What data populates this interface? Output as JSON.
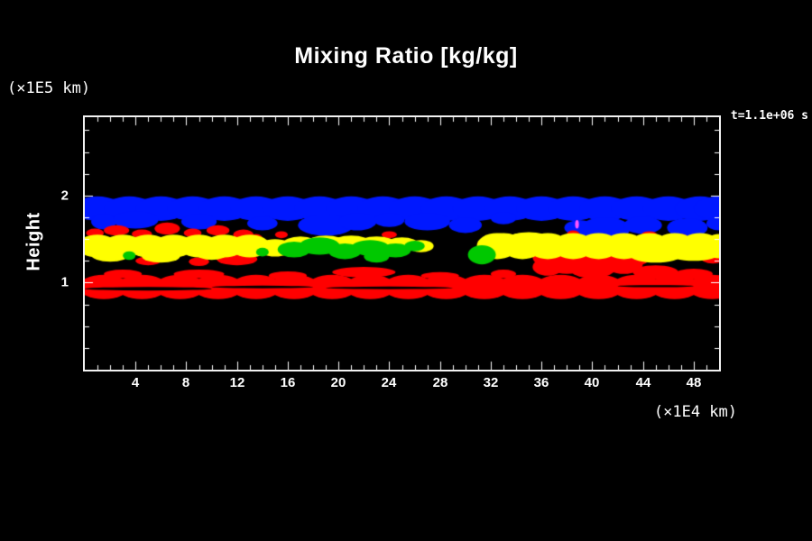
{
  "chart_data": {
    "type": "heatmap",
    "title": "Mixing Ratio [kg/kg]",
    "ylabel": "Height",
    "ylabel_units": "(×1E5 km)",
    "xlabel": "(×1E4 km)",
    "annotation": "t=1.1e+06 s",
    "xlim": [
      0,
      50
    ],
    "ylim": [
      0,
      2.9
    ],
    "x_major_ticks": [
      4,
      8,
      12,
      16,
      20,
      24,
      28,
      32,
      36,
      40,
      44,
      48
    ],
    "x_minor_step": 1,
    "y_major_ticks": [
      1,
      2
    ],
    "y_minor_step": 0.25,
    "grid": false,
    "background": "#000000",
    "axis_color": "#ffffff",
    "blob_format": "[x_center (x1E4 km), height_center (x1E5 km), x_radius, y_radius]",
    "layers": [
      {
        "name": "upper-cloud-band-blue",
        "color": "#0018ff",
        "height_range": [
          1.6,
          2.0
        ],
        "blobs": [
          [
            1,
            1.85,
            2,
            0.14
          ],
          [
            3.5,
            1.85,
            2,
            0.14
          ],
          [
            6,
            1.85,
            2,
            0.14
          ],
          [
            8.5,
            1.85,
            2,
            0.14
          ],
          [
            11,
            1.85,
            2,
            0.14
          ],
          [
            13.5,
            1.85,
            2,
            0.14
          ],
          [
            16,
            1.85,
            2,
            0.14
          ],
          [
            18.5,
            1.85,
            2,
            0.14
          ],
          [
            21,
            1.85,
            2,
            0.14
          ],
          [
            23.5,
            1.85,
            2,
            0.14
          ],
          [
            26,
            1.85,
            2,
            0.14
          ],
          [
            28.5,
            1.85,
            2,
            0.14
          ],
          [
            31,
            1.85,
            2,
            0.14
          ],
          [
            33.5,
            1.85,
            2,
            0.14
          ],
          [
            36,
            1.85,
            2,
            0.14
          ],
          [
            38.5,
            1.85,
            2,
            0.14
          ],
          [
            41,
            1.85,
            2,
            0.14
          ],
          [
            43.5,
            1.85,
            2,
            0.14
          ],
          [
            46,
            1.85,
            2,
            0.14
          ],
          [
            48.5,
            1.85,
            2,
            0.14
          ],
          [
            50,
            1.85,
            2,
            0.14
          ],
          [
            1.5,
            1.7,
            1,
            0.09
          ],
          [
            4,
            1.72,
            1.8,
            0.1
          ],
          [
            9,
            1.7,
            1.4,
            0.09
          ],
          [
            14,
            1.68,
            1.2,
            0.08
          ],
          [
            19,
            1.66,
            2.2,
            0.12
          ],
          [
            21.5,
            1.7,
            1.5,
            0.1
          ],
          [
            24,
            1.72,
            1.2,
            0.08
          ],
          [
            27,
            1.7,
            1.8,
            0.1
          ],
          [
            30,
            1.66,
            1.3,
            0.09
          ],
          [
            33,
            1.74,
            1,
            0.07
          ],
          [
            39,
            1.63,
            1.2,
            0.09
          ],
          [
            41,
            1.62,
            2,
            0.13
          ],
          [
            44,
            1.66,
            1.5,
            0.1
          ],
          [
            47.5,
            1.63,
            1.6,
            0.11
          ],
          [
            50,
            1.68,
            1,
            0.08
          ]
        ]
      },
      {
        "name": "lower-cloud-band-red",
        "color": "#ff0000",
        "height_range": [
          0.81,
          1.65
        ],
        "blobs": [
          [
            1.5,
            0.95,
            2,
            0.14
          ],
          [
            4.5,
            0.95,
            2,
            0.14
          ],
          [
            7.5,
            0.95,
            2,
            0.14
          ],
          [
            10.5,
            0.95,
            2,
            0.14
          ],
          [
            13.5,
            0.95,
            2,
            0.14
          ],
          [
            16.5,
            0.95,
            2,
            0.14
          ],
          [
            19.5,
            0.95,
            2,
            0.14
          ],
          [
            22.5,
            0.95,
            2,
            0.14
          ],
          [
            25.5,
            0.95,
            2,
            0.14
          ],
          [
            28.5,
            0.95,
            2,
            0.14
          ],
          [
            31.5,
            0.95,
            2,
            0.14
          ],
          [
            34.5,
            0.95,
            2,
            0.14
          ],
          [
            37.5,
            0.95,
            2,
            0.14
          ],
          [
            40.5,
            0.95,
            2,
            0.14
          ],
          [
            43.5,
            0.95,
            2,
            0.14
          ],
          [
            46.5,
            0.95,
            2,
            0.14
          ],
          [
            49.5,
            0.95,
            2,
            0.14
          ],
          [
            3,
            1.1,
            1.5,
            0.05
          ],
          [
            9,
            1.1,
            2,
            0.05
          ],
          [
            16,
            1.08,
            1.5,
            0.05
          ],
          [
            22,
            1.12,
            2.5,
            0.06
          ],
          [
            28,
            1.08,
            1.5,
            0.04
          ],
          [
            33,
            1.1,
            1,
            0.05
          ],
          [
            36.5,
            1.18,
            1.2,
            0.1
          ],
          [
            40,
            1.3,
            2.2,
            0.18
          ],
          [
            42.5,
            1.22,
            1.5,
            0.12
          ],
          [
            45,
            1.12,
            1.8,
            0.08
          ],
          [
            48,
            1.1,
            1.5,
            0.06
          ],
          [
            36.5,
            1.3,
            1.2,
            0.12
          ],
          [
            38,
            1.25,
            1.8,
            0.15
          ],
          [
            40,
            1.2,
            2,
            0.15
          ],
          [
            42,
            1.3,
            1.5,
            0.1
          ],
          [
            43.5,
            1.28,
            1,
            0.08
          ],
          [
            0.8,
            1.57,
            0.7,
            0.05
          ],
          [
            2.5,
            1.6,
            1,
            0.06
          ],
          [
            4.5,
            1.56,
            0.8,
            0.05
          ],
          [
            6.5,
            1.62,
            1,
            0.07
          ],
          [
            8.5,
            1.57,
            0.7,
            0.05
          ],
          [
            10.5,
            1.6,
            0.9,
            0.06
          ],
          [
            12.5,
            1.55,
            0.8,
            0.06
          ],
          [
            13.5,
            1.48,
            0.6,
            0.08
          ],
          [
            5,
            1.25,
            1,
            0.05
          ],
          [
            9,
            1.24,
            0.8,
            0.05
          ],
          [
            12,
            1.27,
            1.6,
            0.07
          ],
          [
            15.5,
            1.55,
            0.5,
            0.04
          ],
          [
            24,
            1.55,
            0.6,
            0.04
          ],
          [
            38.5,
            1.56,
            0.5,
            0.04
          ],
          [
            44.5,
            1.55,
            0.6,
            0.04
          ],
          [
            47,
            1.52,
            0.5,
            0.04
          ],
          [
            49.5,
            1.3,
            1,
            0.08
          ],
          [
            50,
            1.45,
            0.5,
            0.05
          ]
        ]
      },
      {
        "name": "mid-cloud-band-yellow",
        "color": "#ffff00",
        "height_range": [
          1.23,
          1.58
        ],
        "blobs": [
          [
            1,
            1.42,
            1.6,
            0.13
          ],
          [
            3,
            1.42,
            1.6,
            0.13
          ],
          [
            5,
            1.42,
            1.6,
            0.13
          ],
          [
            7,
            1.42,
            1.6,
            0.13
          ],
          [
            9,
            1.42,
            1.6,
            0.13
          ],
          [
            11,
            1.42,
            1.6,
            0.13
          ],
          [
            13,
            1.42,
            1.6,
            0.13
          ],
          [
            2,
            1.32,
            1.5,
            0.08
          ],
          [
            6,
            1.3,
            1.5,
            0.07
          ],
          [
            10,
            1.33,
            1.2,
            0.07
          ],
          [
            15,
            1.4,
            1.4,
            0.1
          ],
          [
            17,
            1.44,
            1.4,
            0.09
          ],
          [
            19,
            1.46,
            1.5,
            0.08
          ],
          [
            21,
            1.46,
            1.5,
            0.08
          ],
          [
            23,
            1.45,
            1.5,
            0.08
          ],
          [
            25,
            1.44,
            1.3,
            0.08
          ],
          [
            26.5,
            1.42,
            1,
            0.07
          ],
          [
            32.5,
            1.42,
            1.6,
            0.15
          ],
          [
            34.5,
            1.42,
            1.6,
            0.15
          ],
          [
            36.5,
            1.42,
            1.6,
            0.15
          ],
          [
            38.5,
            1.42,
            1.6,
            0.15
          ],
          [
            40.5,
            1.42,
            1.6,
            0.15
          ],
          [
            42.5,
            1.42,
            1.6,
            0.15
          ],
          [
            44.5,
            1.42,
            1.6,
            0.15
          ],
          [
            46.5,
            1.42,
            1.6,
            0.15
          ],
          [
            48.5,
            1.42,
            1.6,
            0.15
          ],
          [
            50,
            1.42,
            1.2,
            0.14
          ],
          [
            45,
            1.31,
            2,
            0.08
          ],
          [
            48,
            1.33,
            2,
            0.08
          ],
          [
            33,
            1.5,
            1.2,
            0.07
          ],
          [
            35,
            1.52,
            1.5,
            0.06
          ]
        ]
      },
      {
        "name": "mid-cloud-patches-green",
        "color": "#00c800",
        "height_range": [
          1.25,
          1.5
        ],
        "blobs": [
          [
            16.5,
            1.38,
            1.3,
            0.09
          ],
          [
            18.5,
            1.42,
            1.6,
            0.1
          ],
          [
            20.5,
            1.36,
            1.3,
            0.09
          ],
          [
            22.5,
            1.4,
            1.5,
            0.09
          ],
          [
            24.5,
            1.37,
            1.2,
            0.08
          ],
          [
            26,
            1.42,
            0.8,
            0.06
          ],
          [
            23,
            1.3,
            1,
            0.07
          ],
          [
            31.3,
            1.32,
            1.1,
            0.11
          ],
          [
            3.5,
            1.31,
            0.5,
            0.05
          ],
          [
            14,
            1.35,
            0.5,
            0.05
          ]
        ]
      },
      {
        "name": "band-internal-dark-streaks",
        "color": "#000000",
        "height_range": [
          0.9,
          0.98
        ],
        "blobs": [
          [
            5,
            0.93,
            5,
            0.02
          ],
          [
            14,
            0.95,
            4,
            0.015
          ],
          [
            24,
            0.94,
            5,
            0.015
          ],
          [
            45,
            0.96,
            3,
            0.012
          ]
        ]
      },
      {
        "name": "isolated-speck-magenta",
        "color": "#ff55ff",
        "height_range": [
          1.62,
          1.72
        ],
        "blobs": [
          [
            38.8,
            1.67,
            0.15,
            0.05
          ]
        ]
      }
    ]
  }
}
